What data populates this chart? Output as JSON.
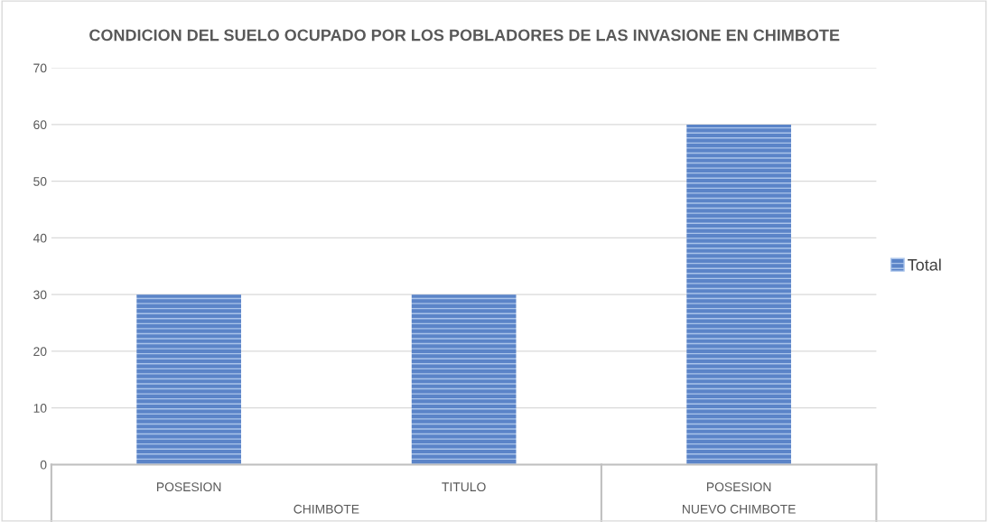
{
  "chart_data": {
    "type": "bar",
    "title": "CONDICION DEL SUELO OCUPADO POR LOS POBLADORES DE LAS INVASIONE EN CHIMBOTE",
    "categories": [
      "POSESION",
      "TITULO",
      "POSESION"
    ],
    "series": [
      {
        "name": "Total",
        "color": "#5b84c8",
        "values": [
          30,
          30,
          60
        ]
      }
    ],
    "annotations": [
      "CHIMBOTE",
      "NUEVO CHIMBOTE"
    ],
    "ylim": [
      0,
      70
    ],
    "yticks": [
      0,
      10,
      20,
      30,
      40,
      50,
      60,
      70
    ],
    "grid": "y",
    "legend": "right"
  }
}
